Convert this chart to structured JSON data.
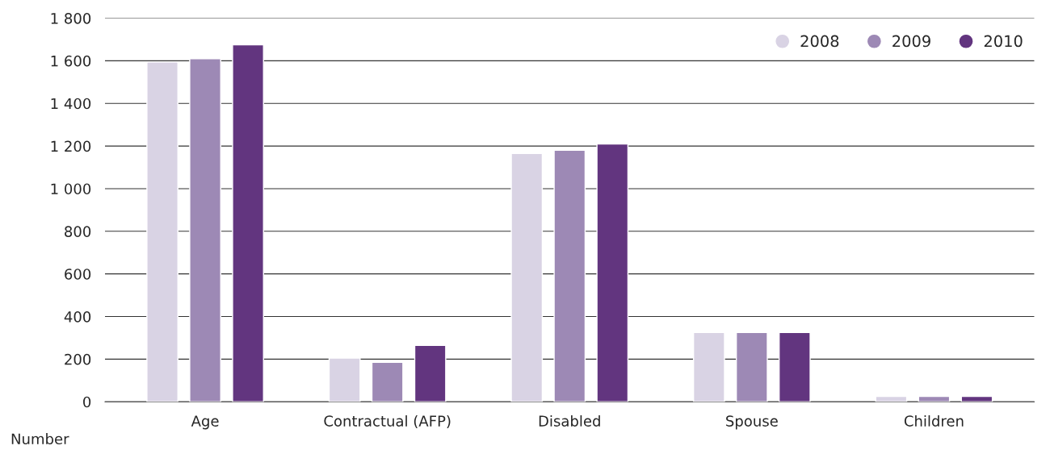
{
  "chart_data": {
    "type": "bar",
    "ylabel": "Number",
    "categories": [
      "Age",
      "Contractual (AFP)",
      "Disabled",
      "Spouse",
      "Children"
    ],
    "series": [
      {
        "name": "2008",
        "color": "#d9d3e4",
        "values": [
          1595,
          205,
          1165,
          325,
          25
        ]
      },
      {
        "name": "2009",
        "color": "#9d89b5",
        "values": [
          1610,
          185,
          1180,
          325,
          25
        ]
      },
      {
        "name": "2010",
        "color": "#62357f",
        "values": [
          1675,
          265,
          1210,
          325,
          25
        ]
      }
    ],
    "ylim": [
      0,
      1800
    ],
    "yticks": [
      {
        "value": 0,
        "label": "0"
      },
      200,
      400,
      600,
      800,
      {
        "value": 1000,
        "label": "1 000"
      },
      {
        "value": 1200,
        "label": "1 200"
      },
      {
        "value": 1400,
        "label": "1 400"
      },
      {
        "value": 1600,
        "label": "1 600"
      },
      {
        "value": 1800,
        "label": "1 800"
      }
    ],
    "grid": "y",
    "legend": "top right",
    "marker": "circle"
  }
}
